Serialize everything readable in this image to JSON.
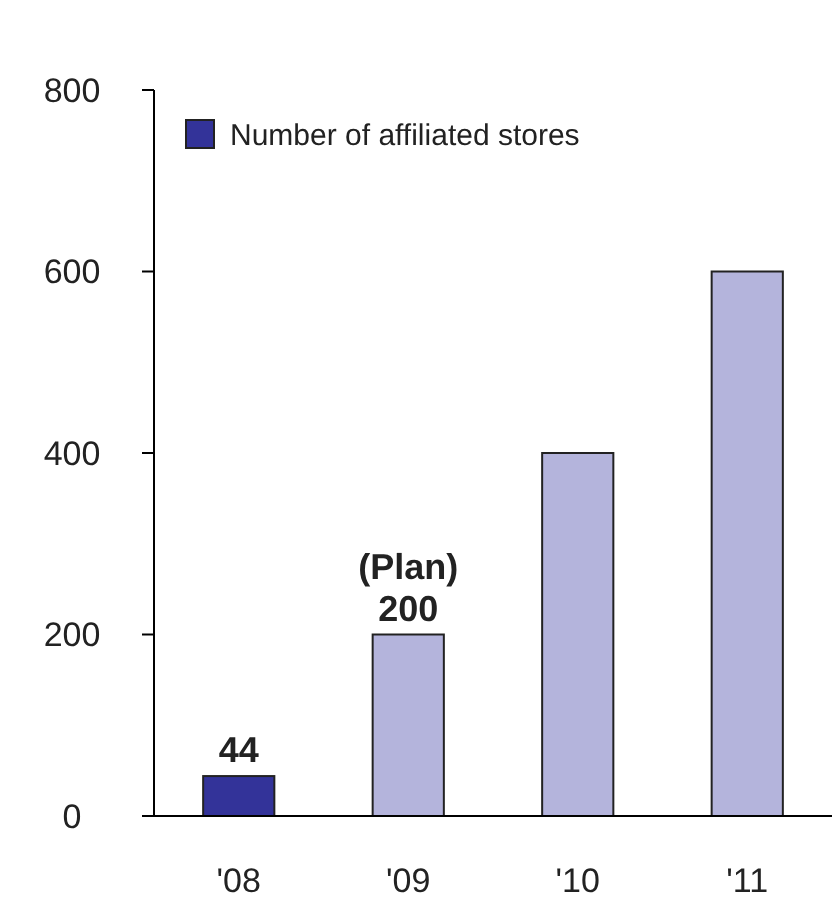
{
  "chart_data": {
    "type": "bar",
    "categories": [
      "'08",
      "'09",
      "'10",
      "'11"
    ],
    "series": [
      {
        "name": "Number of affiliated stores",
        "color": "#333399",
        "colors": [
          "#333399",
          "#b4b4dc",
          "#b4b4dc",
          "#b4b4dc"
        ],
        "values": [
          44,
          200,
          400,
          600
        ],
        "value_labels": [
          "44",
          "200",
          null,
          null
        ]
      }
    ],
    "annotations": [
      {
        "text": "(Plan)",
        "x": "'09",
        "y": 200
      }
    ],
    "ylim": [
      0,
      800
    ],
    "yticks": [
      0,
      200,
      400,
      600,
      800
    ],
    "grid": false,
    "legend": "top left"
  }
}
